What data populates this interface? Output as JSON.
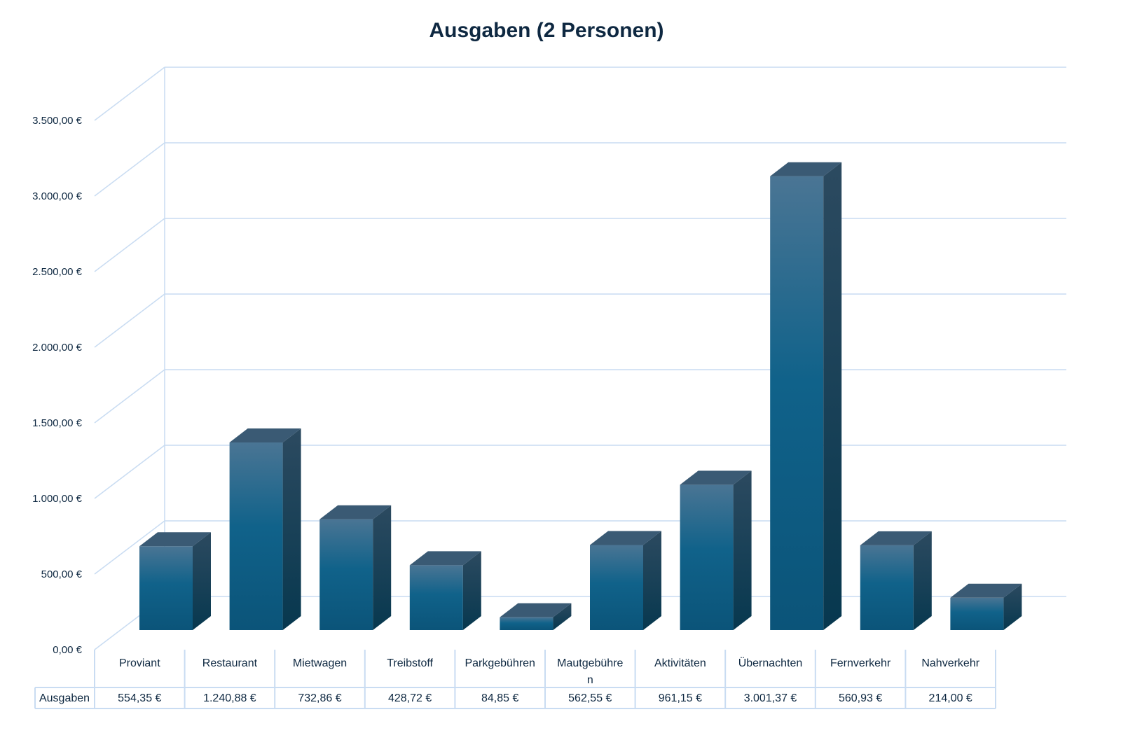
{
  "chart_data": {
    "type": "bar",
    "title": "Ausgaben (2 Personen)",
    "xlabel": "",
    "ylabel": "",
    "ylim": [
      0,
      3500
    ],
    "y_ticks": [
      0,
      500,
      1000,
      1500,
      2000,
      2500,
      3000,
      3500
    ],
    "y_tick_labels": [
      "0,00 €",
      "500,00 €",
      "1.000,00 €",
      "1.500,00 €",
      "2.000,00 €",
      "2.500,00 €",
      "3.000,00 €",
      "3.500,00 €"
    ],
    "grid": true,
    "style": "3d-column with data table",
    "categories": [
      "Proviant",
      "Restaurant",
      "Mietwagen",
      "Treibstoff",
      "Parkgebühren",
      "Mautgebühre\nn",
      "Aktivitäten",
      "Übernachten",
      "Fernverkehr",
      "Nahverkehr"
    ],
    "series": [
      {
        "name": "Ausgaben",
        "values": [
          554.35,
          1240.88,
          732.86,
          428.72,
          84.85,
          562.55,
          961.15,
          3001.37,
          560.93,
          214.0
        ],
        "labels": [
          "554,35 €",
          "1.240,88 €",
          "732,86 €",
          "428,72 €",
          "84,85 €",
          "562,55 €",
          "961,15 €",
          "3.001,37 €",
          "560,93 €",
          "214,00 €"
        ]
      }
    ],
    "colors": {
      "bar_top": "#4a7594",
      "bar_bottom": "#0b5479",
      "bar_side": "#0a3a52",
      "bar_cap": "#3a5a74",
      "grid": "#c9dcf2",
      "text": "#0e2841"
    }
  }
}
